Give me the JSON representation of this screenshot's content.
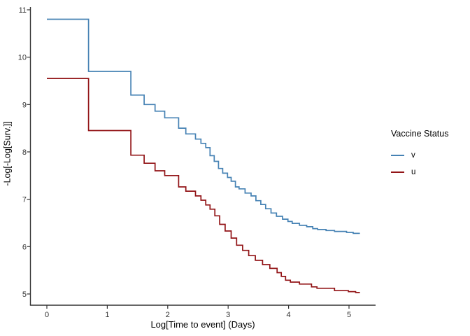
{
  "chart_data": {
    "type": "line",
    "subtype": "step-survival-cloglog",
    "title": "",
    "xlabel": "Log[Time to event] (Days)",
    "ylabel": "-Log[-Log[Surv.]]",
    "xlim": [
      0,
      5.4
    ],
    "ylim": [
      5,
      11
    ],
    "x_ticks": [
      0,
      1,
      2,
      3,
      4,
      5
    ],
    "y_ticks": [
      5,
      6,
      7,
      8,
      9,
      10,
      11
    ],
    "grid": false,
    "colors": {
      "v": "#4682B4",
      "u": "#921417",
      "axis": "#333333",
      "tick_text": "#333333"
    },
    "legend": {
      "title": "Vaccine Status",
      "position": "right",
      "entries": [
        {
          "label": "v",
          "color": "#4682B4"
        },
        {
          "label": "u",
          "color": "#921417"
        }
      ]
    },
    "series": [
      {
        "name": "v",
        "color": "#4682B4",
        "step": true,
        "x_end": 5.18,
        "points": [
          [
            0,
            10.8
          ],
          [
            0.69,
            9.7
          ],
          [
            1.39,
            9.2
          ],
          [
            1.61,
            9.0
          ],
          [
            1.79,
            8.86
          ],
          [
            1.95,
            8.72
          ],
          [
            2.18,
            8.5
          ],
          [
            2.3,
            8.38
          ],
          [
            2.46,
            8.27
          ],
          [
            2.55,
            8.18
          ],
          [
            2.63,
            8.09
          ],
          [
            2.7,
            7.92
          ],
          [
            2.77,
            7.8
          ],
          [
            2.84,
            7.65
          ],
          [
            2.91,
            7.55
          ],
          [
            2.99,
            7.46
          ],
          [
            3.05,
            7.38
          ],
          [
            3.12,
            7.26
          ],
          [
            3.18,
            7.22
          ],
          [
            3.28,
            7.13
          ],
          [
            3.38,
            7.07
          ],
          [
            3.46,
            6.97
          ],
          [
            3.54,
            6.89
          ],
          [
            3.62,
            6.8
          ],
          [
            3.71,
            6.71
          ],
          [
            3.8,
            6.64
          ],
          [
            3.9,
            6.58
          ],
          [
            3.99,
            6.53
          ],
          [
            4.06,
            6.49
          ],
          [
            4.18,
            6.45
          ],
          [
            4.3,
            6.42
          ],
          [
            4.4,
            6.38
          ],
          [
            4.48,
            6.36
          ],
          [
            4.62,
            6.34
          ],
          [
            4.76,
            6.32
          ],
          [
            4.96,
            6.3
          ],
          [
            5.07,
            6.28
          ]
        ]
      },
      {
        "name": "u",
        "color": "#921417",
        "step": true,
        "x_end": 5.18,
        "points": [
          [
            0,
            9.55
          ],
          [
            0.69,
            8.45
          ],
          [
            1.39,
            7.93
          ],
          [
            1.61,
            7.76
          ],
          [
            1.79,
            7.6
          ],
          [
            1.95,
            7.5
          ],
          [
            2.18,
            7.26
          ],
          [
            2.3,
            7.17
          ],
          [
            2.46,
            7.07
          ],
          [
            2.55,
            6.98
          ],
          [
            2.63,
            6.88
          ],
          [
            2.7,
            6.79
          ],
          [
            2.78,
            6.65
          ],
          [
            2.86,
            6.47
          ],
          [
            2.95,
            6.33
          ],
          [
            3.05,
            6.18
          ],
          [
            3.14,
            6.03
          ],
          [
            3.24,
            5.92
          ],
          [
            3.34,
            5.81
          ],
          [
            3.45,
            5.71
          ],
          [
            3.57,
            5.62
          ],
          [
            3.69,
            5.54
          ],
          [
            3.81,
            5.45
          ],
          [
            3.88,
            5.37
          ],
          [
            3.95,
            5.29
          ],
          [
            4.03,
            5.25
          ],
          [
            4.18,
            5.21
          ],
          [
            4.38,
            5.15
          ],
          [
            4.47,
            5.12
          ],
          [
            4.76,
            5.07
          ],
          [
            4.99,
            5.05
          ],
          [
            5.11,
            5.03
          ]
        ]
      }
    ]
  }
}
